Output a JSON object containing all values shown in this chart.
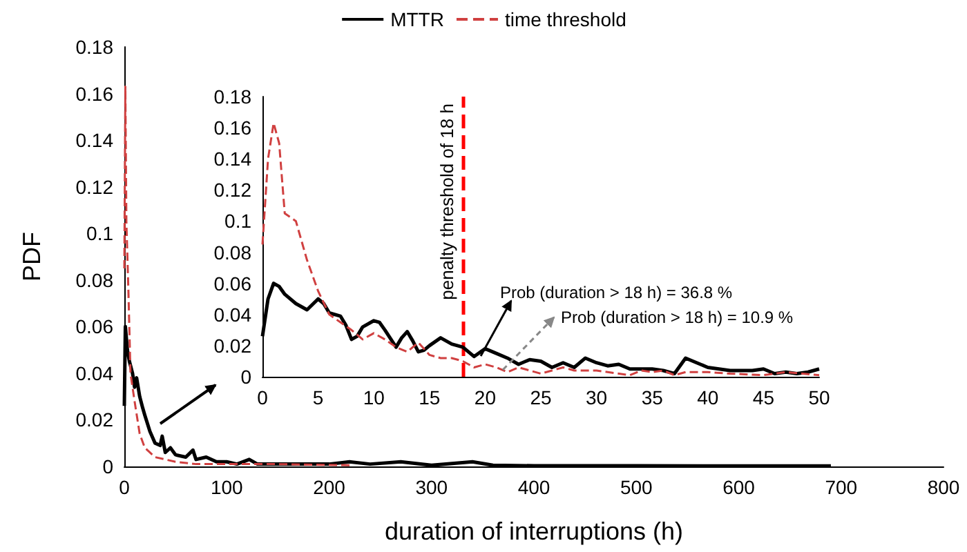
{
  "chart_data": [
    {
      "type": "line",
      "xlabel": "duration of interruptions (h)",
      "ylabel": "PDF",
      "legend": "top",
      "marker": "none",
      "xlim": [
        0,
        800
      ],
      "xticks": [
        0,
        100,
        200,
        300,
        400,
        500,
        600,
        700,
        800
      ],
      "ylim": [
        0,
        0.18
      ],
      "yticks": [
        0,
        0.02,
        0.04,
        0.06,
        0.08,
        0.1,
        0.12,
        0.14,
        0.16,
        0.18
      ],
      "series": [
        {
          "name": "MTTR",
          "color": "#000000",
          "line_style": "solid",
          "x": [
            0,
            1,
            3,
            5,
            8,
            10,
            12,
            15,
            18,
            20,
            25,
            30,
            35,
            37,
            40,
            45,
            50,
            60,
            67,
            70,
            80,
            90,
            100,
            110,
            122,
            130,
            150,
            200,
            220,
            240,
            270,
            300,
            340,
            360,
            400,
            500,
            600,
            690
          ],
          "values": [
            0.026,
            0.06,
            0.05,
            0.045,
            0.04,
            0.034,
            0.038,
            0.03,
            0.025,
            0.022,
            0.015,
            0.01,
            0.009,
            0.013,
            0.006,
            0.008,
            0.005,
            0.004,
            0.007,
            0.003,
            0.004,
            0.002,
            0.002,
            0.001,
            0.003,
            0.001,
            0.001,
            0.001,
            0.002,
            0.001,
            0.002,
            0.0005,
            0.002,
            0.0005,
            0.0003,
            0.0003,
            0.0002,
            0.0002
          ]
        },
        {
          "name": "time threshold",
          "color": "#d04040",
          "line_style": "dashed",
          "x": [
            0,
            1,
            2,
            4,
            6,
            10,
            15,
            20,
            30,
            40,
            50,
            70,
            100,
            150,
            220
          ],
          "values": [
            0.085,
            0.163,
            0.105,
            0.075,
            0.04,
            0.028,
            0.014,
            0.008,
            0.004,
            0.003,
            0.002,
            0.001,
            0.001,
            0.001,
            0.0005
          ]
        }
      ]
    },
    {
      "type": "line",
      "marker": "none",
      "xlim": [
        0,
        50
      ],
      "xticks": [
        0,
        5,
        10,
        15,
        20,
        25,
        30,
        35,
        40,
        45,
        50
      ],
      "ylim": [
        0,
        0.18
      ],
      "yticks": [
        0,
        0.02,
        0.04,
        0.06,
        0.08,
        0.1,
        0.12,
        0.14,
        0.16,
        0.18
      ],
      "annotations": [
        "Prob (duration > 18 h) = 36.8 %",
        "Prob (duration > 18 h) = 10.9 %"
      ],
      "ref_lines": [
        {
          "axis": "x",
          "value": 18,
          "label": "penalty threshold of 18 h",
          "color": "#ff0000",
          "line_style": "dashed"
        }
      ],
      "series": [
        {
          "color": "#000000",
          "line_style": "solid",
          "x": [
            0,
            0.5,
            1,
            1.5,
            2,
            3,
            4,
            5,
            5.5,
            6,
            7,
            7.5,
            8,
            8.5,
            9,
            10,
            10.5,
            11,
            12,
            12.5,
            13,
            13.5,
            14,
            14.5,
            15,
            16,
            17,
            18,
            19,
            20,
            21,
            22,
            23,
            24,
            25,
            26,
            27,
            28,
            29,
            30,
            31,
            32,
            33,
            34,
            35,
            36,
            37,
            38,
            39,
            40,
            42,
            44,
            45,
            46,
            47,
            48,
            49,
            50
          ],
          "values": [
            0.026,
            0.05,
            0.06,
            0.058,
            0.053,
            0.047,
            0.043,
            0.05,
            0.047,
            0.041,
            0.039,
            0.033,
            0.024,
            0.026,
            0.032,
            0.036,
            0.035,
            0.03,
            0.019,
            0.025,
            0.029,
            0.023,
            0.016,
            0.017,
            0.02,
            0.025,
            0.021,
            0.019,
            0.013,
            0.018,
            0.015,
            0.012,
            0.008,
            0.011,
            0.01,
            0.006,
            0.009,
            0.006,
            0.012,
            0.009,
            0.007,
            0.008,
            0.005,
            0.005,
            0.005,
            0.004,
            0.002,
            0.012,
            0.009,
            0.006,
            0.004,
            0.004,
            0.005,
            0.002,
            0.003,
            0.002,
            0.003,
            0.005
          ]
        },
        {
          "color": "#d04040",
          "line_style": "dashed",
          "x": [
            0,
            0.5,
            1,
            1.5,
            2,
            3,
            4,
            5,
            6,
            7,
            8,
            9,
            10,
            11,
            12,
            13,
            14,
            15,
            16,
            17,
            18,
            19,
            20,
            21,
            22,
            23,
            24,
            25,
            26,
            27,
            28,
            30,
            32,
            33,
            34,
            35,
            36,
            37,
            38,
            40,
            42,
            45,
            47,
            50
          ],
          "values": [
            0.085,
            0.14,
            0.163,
            0.15,
            0.105,
            0.1,
            0.075,
            0.055,
            0.04,
            0.035,
            0.03,
            0.024,
            0.028,
            0.024,
            0.019,
            0.016,
            0.022,
            0.014,
            0.012,
            0.012,
            0.01,
            0.006,
            0.008,
            0.006,
            0.003,
            0.006,
            0.004,
            0.002,
            0.004,
            0.006,
            0.004,
            0.004,
            0.002,
            0.001,
            0.004,
            0.003,
            0.004,
            0.001,
            0.003,
            0.003,
            0.002,
            0.001,
            0.003,
            0.001
          ]
        }
      ]
    }
  ]
}
